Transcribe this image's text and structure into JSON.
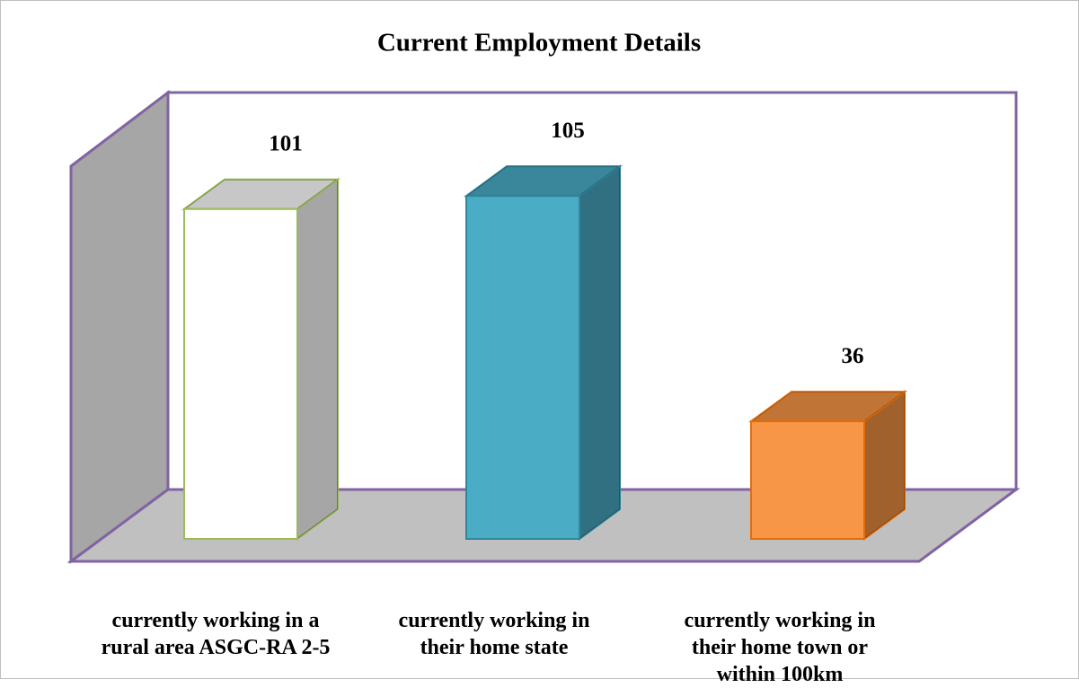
{
  "chart_data": {
    "type": "bar",
    "title": "Current Employment Details",
    "categories": [
      "currently working in a rural area ASGC-RA 2-5",
      "currently working in their home state",
      "currently working in their home town or within 100km"
    ],
    "values": [
      101,
      105,
      36
    ],
    "colors": [
      "#ffffff",
      "#4bacc6",
      "#f79646"
    ],
    "edge_colors": [
      "#9bbb59",
      "#31859c",
      "#e46c0a"
    ],
    "ylim": [
      0,
      110
    ]
  }
}
